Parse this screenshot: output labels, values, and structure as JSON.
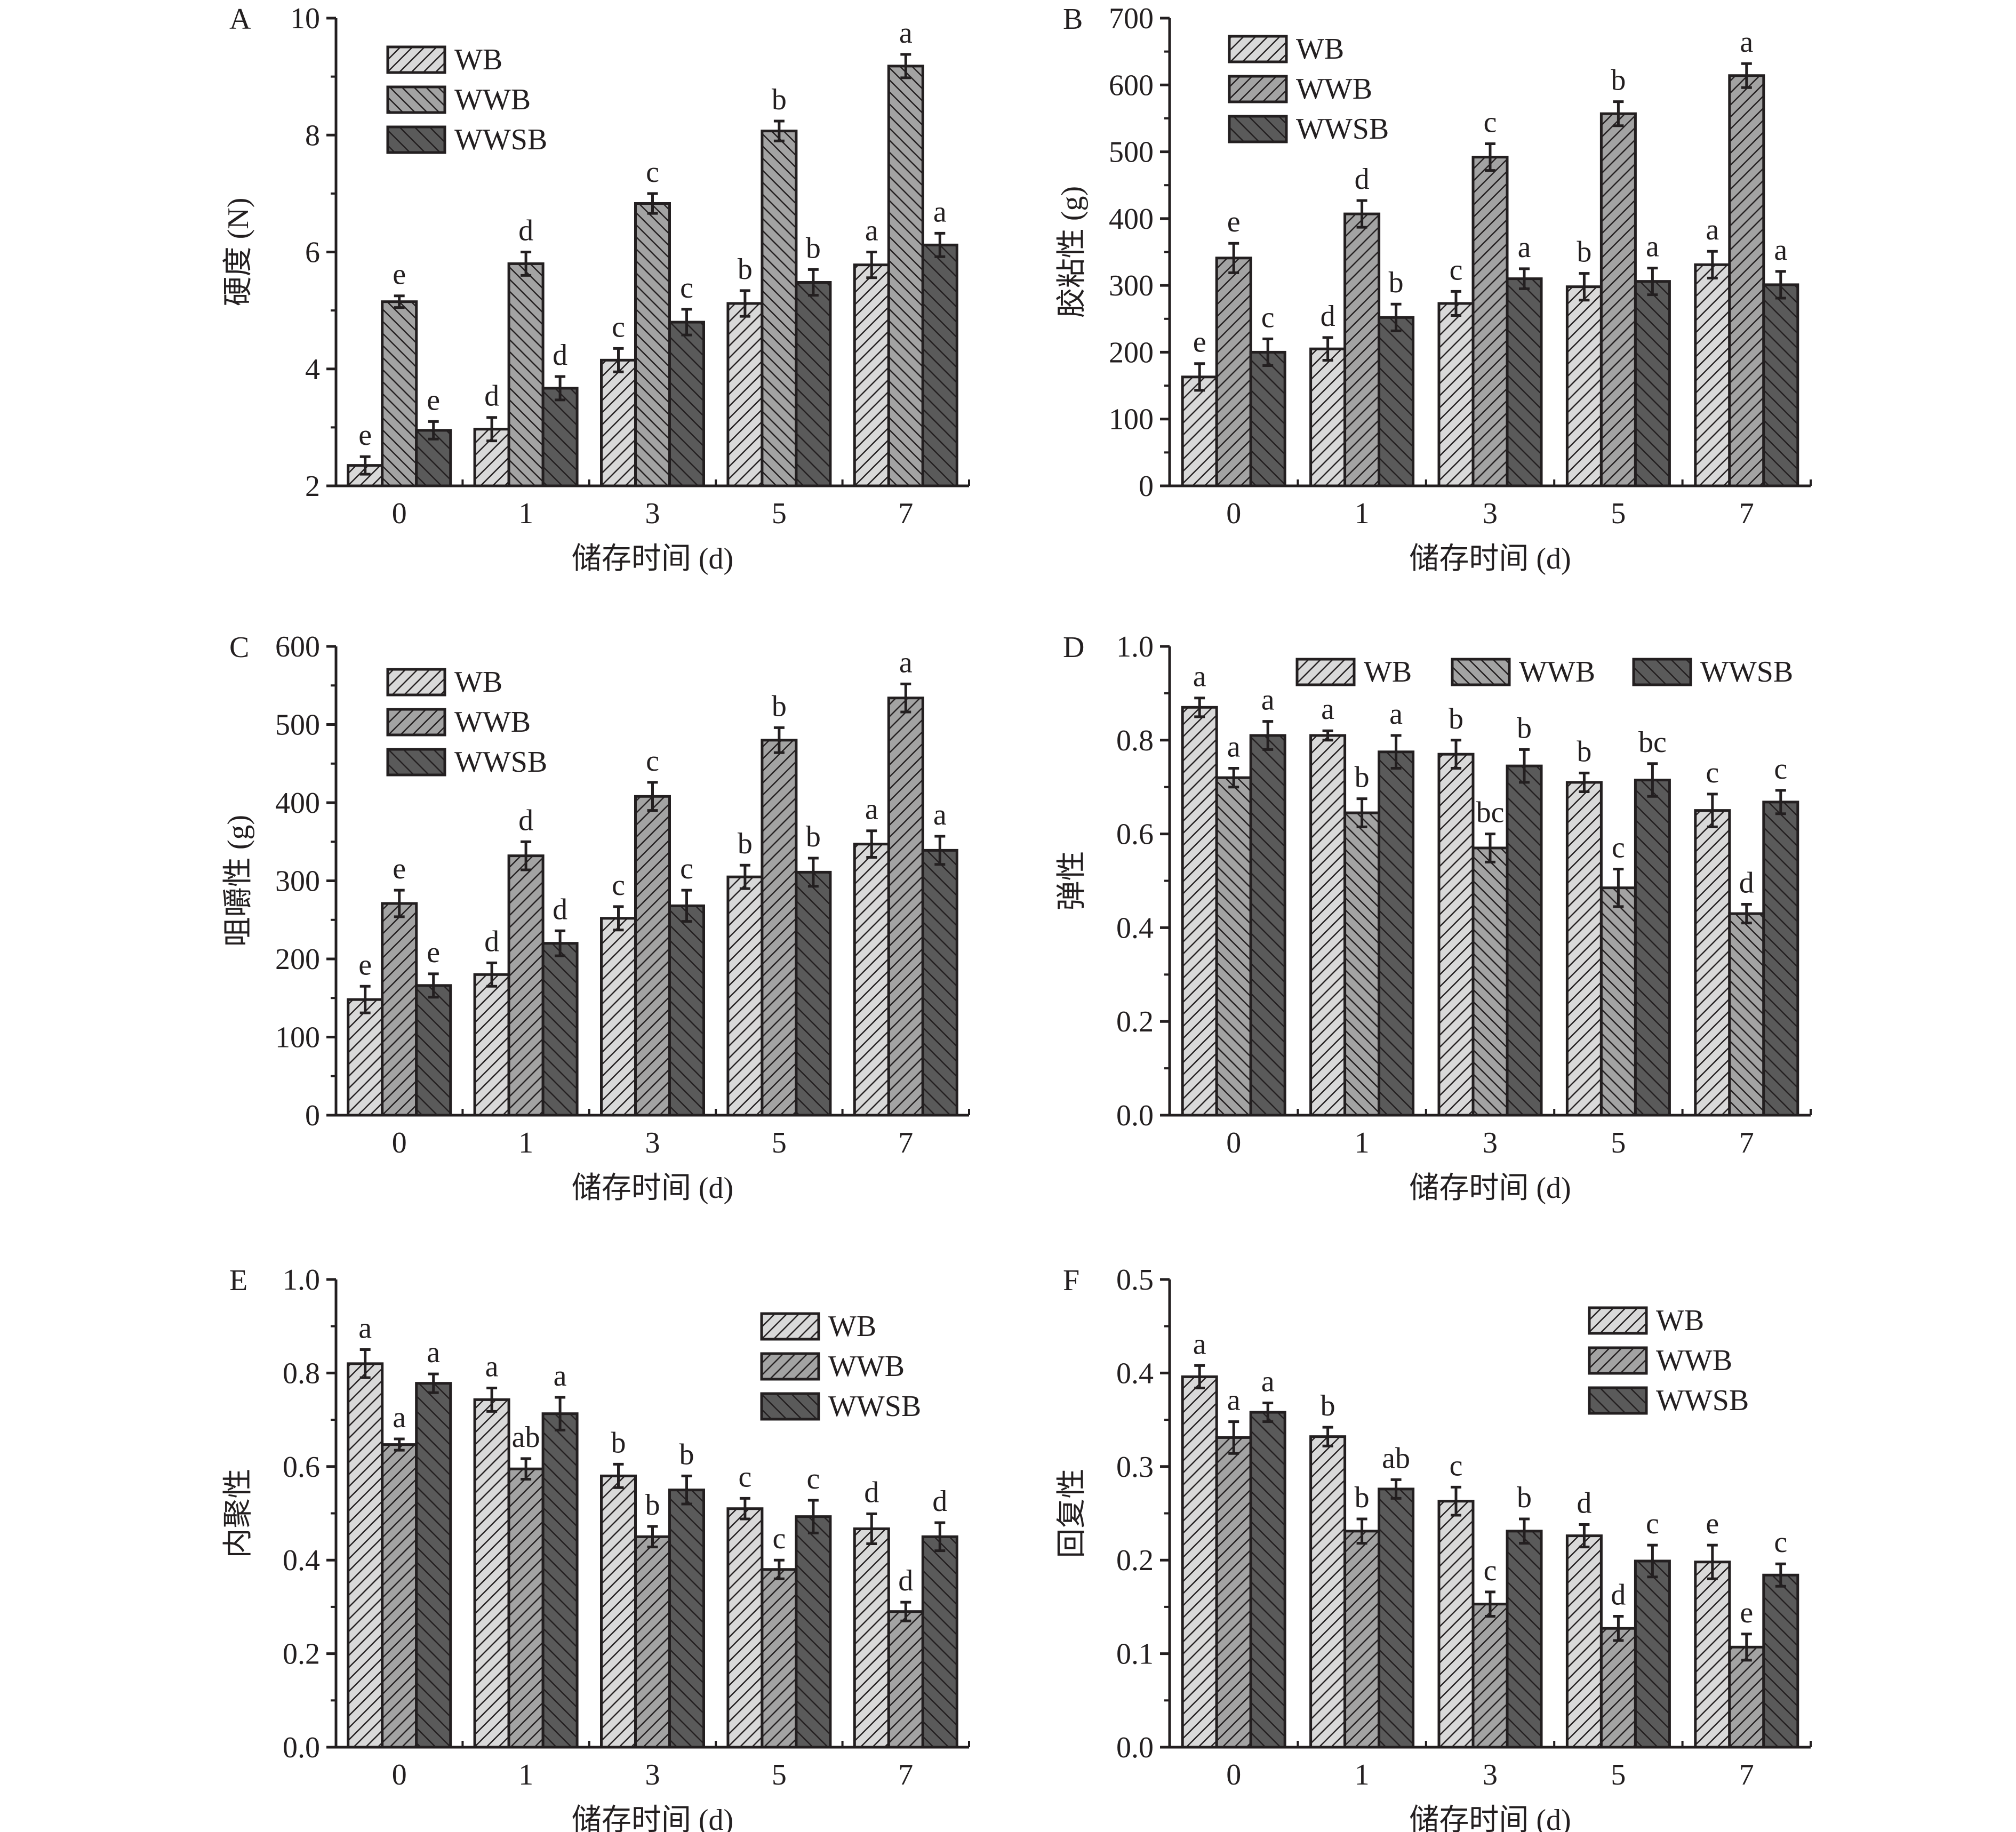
{
  "legend": [
    "WB",
    "WWB",
    "WWSB"
  ],
  "colors": {
    "WB": "#d9d9d9",
    "WWB": "#a3a3a3",
    "WWSB": "#5a5a5a",
    "axis": "#231f20"
  },
  "chart_data": [
    {
      "panel": "A",
      "type": "bar",
      "ylabel": "硬度 (N)",
      "xlabel": "储存时间 (d)",
      "categories": [
        "0",
        "1",
        "3",
        "5",
        "7"
      ],
      "ylim": [
        2,
        10
      ],
      "yticks": [
        "2",
        "4",
        "6",
        "8",
        "10"
      ],
      "legend_placement": "top-left",
      "series": [
        {
          "name": "WB",
          "values": [
            2.35,
            2.97,
            4.15,
            5.12,
            5.78
          ],
          "errors": [
            0.15,
            0.2,
            0.2,
            0.22,
            0.22
          ],
          "letters": [
            "e",
            "d",
            "c",
            "b",
            "a"
          ]
        },
        {
          "name": "WWB",
          "values": [
            5.15,
            5.8,
            6.83,
            8.07,
            9.18
          ],
          "errors": [
            0.1,
            0.2,
            0.17,
            0.17,
            0.2
          ],
          "letters": [
            "e",
            "d",
            "c",
            "b",
            "a"
          ]
        },
        {
          "name": "WWSB",
          "values": [
            2.95,
            3.67,
            4.8,
            5.48,
            6.12
          ],
          "errors": [
            0.15,
            0.2,
            0.22,
            0.22,
            0.2
          ],
          "letters": [
            "e",
            "d",
            "c",
            "b",
            "a"
          ]
        }
      ]
    },
    {
      "panel": "B",
      "type": "bar",
      "ylabel": "胶粘性 (g)",
      "xlabel": "储存时间 (d)",
      "categories": [
        "0",
        "1",
        "3",
        "5",
        "7"
      ],
      "ylim": [
        0,
        700
      ],
      "yticks": [
        "0",
        "100",
        "200",
        "300",
        "400",
        "500",
        "600",
        "700"
      ],
      "legend_placement": "top-left",
      "series": [
        {
          "name": "WB",
          "values": [
            163,
            205,
            273,
            298,
            331
          ],
          "errors": [
            20,
            17,
            18,
            20,
            20
          ],
          "letters": [
            "e",
            "d",
            "c",
            "b",
            "a"
          ]
        },
        {
          "name": "WWB",
          "values": [
            341,
            407,
            492,
            557,
            614
          ],
          "errors": [
            22,
            20,
            20,
            18,
            18
          ],
          "letters": [
            "e",
            "d",
            "c",
            "b",
            "a"
          ]
        },
        {
          "name": "WWSB",
          "values": [
            200,
            252,
            310,
            306,
            301
          ],
          "errors": [
            20,
            20,
            15,
            20,
            20
          ],
          "letters": [
            "c",
            "b",
            "a",
            "a",
            "a"
          ]
        }
      ]
    },
    {
      "panel": "C",
      "type": "bar",
      "ylabel": "咀嚼性 (g)",
      "xlabel": "储存时间 (d)",
      "categories": [
        "0",
        "1",
        "3",
        "5",
        "7"
      ],
      "ylim": [
        0,
        600
      ],
      "yticks": [
        "0",
        "100",
        "200",
        "300",
        "400",
        "500",
        "600"
      ],
      "legend_placement": "top-left",
      "series": [
        {
          "name": "WB",
          "values": [
            148,
            180,
            252,
            305,
            347
          ],
          "errors": [
            17,
            15,
            15,
            15,
            17
          ],
          "letters": [
            "e",
            "d",
            "c",
            "b",
            "a"
          ]
        },
        {
          "name": "WWB",
          "values": [
            271,
            332,
            408,
            480,
            534
          ],
          "errors": [
            17,
            18,
            18,
            16,
            18
          ],
          "letters": [
            "e",
            "d",
            "c",
            "b",
            "a"
          ]
        },
        {
          "name": "WWSB",
          "values": [
            166,
            220,
            268,
            311,
            339
          ],
          "errors": [
            15,
            16,
            20,
            18,
            18
          ],
          "letters": [
            "e",
            "d",
            "c",
            "b",
            "a"
          ]
        }
      ]
    },
    {
      "panel": "D",
      "type": "bar",
      "ylabel": "弹性",
      "xlabel": "储存时间 (d)",
      "categories": [
        "0",
        "1",
        "3",
        "5",
        "7"
      ],
      "ylim": [
        0,
        1.0
      ],
      "yticks": [
        "0.0",
        "0.2",
        "0.4",
        "0.6",
        "0.8",
        "1.0"
      ],
      "legend_placement": "top",
      "series": [
        {
          "name": "WB",
          "values": [
            0.87,
            0.81,
            0.77,
            0.71,
            0.65
          ],
          "errors": [
            0.02,
            0.01,
            0.03,
            0.02,
            0.035
          ],
          "letters": [
            "a",
            "a",
            "b",
            "b",
            "c"
          ]
        },
        {
          "name": "WWB",
          "values": [
            0.72,
            0.645,
            0.57,
            0.485,
            0.43
          ],
          "errors": [
            0.02,
            0.03,
            0.03,
            0.04,
            0.02
          ],
          "letters": [
            "a",
            "b",
            "bc",
            "c",
            "d"
          ]
        },
        {
          "name": "WWSB",
          "values": [
            0.81,
            0.775,
            0.745,
            0.715,
            0.668
          ],
          "errors": [
            0.03,
            0.035,
            0.035,
            0.035,
            0.025
          ],
          "letters": [
            "a",
            "a",
            "b",
            "bc",
            "c"
          ]
        }
      ]
    },
    {
      "panel": "E",
      "type": "bar",
      "ylabel": "内聚性",
      "xlabel": "储存时间 (d)",
      "categories": [
        "0",
        "1",
        "3",
        "5",
        "7"
      ],
      "ylim": [
        0,
        1.0
      ],
      "yticks": [
        "0.0",
        "0.2",
        "0.4",
        "0.6",
        "0.8",
        "1.0"
      ],
      "legend_placement": "top-right",
      "series": [
        {
          "name": "WB",
          "values": [
            0.82,
            0.743,
            0.58,
            0.51,
            0.467
          ],
          "errors": [
            0.03,
            0.025,
            0.025,
            0.022,
            0.032
          ],
          "letters": [
            "a",
            "a",
            "b",
            "c",
            "d"
          ]
        },
        {
          "name": "WWB",
          "values": [
            0.647,
            0.595,
            0.45,
            0.38,
            0.29
          ],
          "errors": [
            0.012,
            0.022,
            0.022,
            0.02,
            0.02
          ],
          "letters": [
            "a",
            "ab",
            "b",
            "c",
            "d"
          ]
        },
        {
          "name": "WWSB",
          "values": [
            0.778,
            0.713,
            0.55,
            0.493,
            0.45
          ],
          "errors": [
            0.02,
            0.035,
            0.03,
            0.035,
            0.03
          ],
          "letters": [
            "a",
            "a",
            "b",
            "c",
            "d"
          ]
        }
      ]
    },
    {
      "panel": "F",
      "type": "bar",
      "ylabel": "回复性",
      "xlabel": "储存时间 (d)",
      "categories": [
        "0",
        "1",
        "3",
        "5",
        "7"
      ],
      "ylim": [
        0,
        0.5
      ],
      "yticks": [
        "0.0",
        "0.1",
        "0.2",
        "0.3",
        "0.4",
        "0.5"
      ],
      "legend_placement": "top-right",
      "series": [
        {
          "name": "WB",
          "values": [
            0.396,
            0.332,
            0.263,
            0.226,
            0.198
          ],
          "errors": [
            0.012,
            0.01,
            0.015,
            0.012,
            0.018
          ],
          "letters": [
            "a",
            "b",
            "c",
            "d",
            "e"
          ]
        },
        {
          "name": "WWB",
          "values": [
            0.331,
            0.231,
            0.153,
            0.127,
            0.107
          ],
          "errors": [
            0.017,
            0.013,
            0.013,
            0.013,
            0.014
          ],
          "letters": [
            "a",
            "b",
            "c",
            "d",
            "e"
          ]
        },
        {
          "name": "WWSB",
          "values": [
            0.358,
            0.276,
            0.231,
            0.199,
            0.184
          ],
          "errors": [
            0.01,
            0.01,
            0.013,
            0.017,
            0.012
          ],
          "letters": [
            "a",
            "ab",
            "b",
            "c",
            "c"
          ]
        }
      ]
    }
  ]
}
